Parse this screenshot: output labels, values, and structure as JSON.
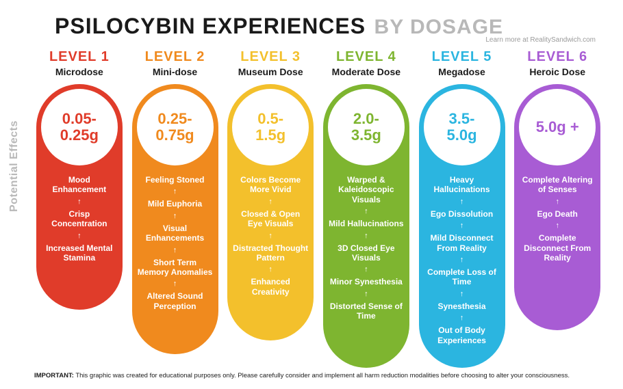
{
  "header": {
    "title_main": "PSILOCYBIN EXPERIENCES",
    "title_sub": "BY DOSAGE",
    "learn_more": "Learn more at RealitySandwich.com"
  },
  "side_label": "Potential Effects",
  "levels": [
    {
      "label": "LEVEL 1",
      "dose_name": "Microdose",
      "amount": "0.05-0.25g",
      "color": "#e03c2a",
      "pill_height": 330,
      "effects": [
        "Mood Enhancement",
        "Crisp Concentration",
        "Increased Mental Stamina"
      ]
    },
    {
      "label": "LEVEL 2",
      "dose_name": "Mini-dose",
      "amount": "0.25-0.75g",
      "color": "#f08a1e",
      "pill_height": 395,
      "effects": [
        "Feeling Stoned",
        "Mild Euphoria",
        "Visual Enhancements",
        "Short Term Memory Anomalies",
        "Altered Sound Perception"
      ]
    },
    {
      "label": "LEVEL 3",
      "dose_name": "Museum Dose",
      "amount": "0.5-1.5g",
      "color": "#f3c02c",
      "pill_height": 375,
      "effects": [
        "Colors Become More Vivid",
        "Closed & Open Eye Visuals",
        "Distracted Thought Pattern",
        "Enhanced Creativity"
      ]
    },
    {
      "label": "LEVEL 4",
      "dose_name": "Moderate Dose",
      "amount": "2.0-3.5g",
      "color": "#7eb530",
      "pill_height": 415,
      "effects": [
        "Warped & Kaleidoscopic Visuals",
        "Mild Hallucinations",
        "3D Closed Eye Visuals",
        "Minor Synesthesia",
        "Distorted Sense of Time"
      ]
    },
    {
      "label": "LEVEL 5",
      "dose_name": "Megadose",
      "amount": "3.5-5.0g",
      "color": "#2bb5e0",
      "pill_height": 415,
      "effects": [
        "Heavy Hallucinations",
        "Ego Dissolution",
        "Mild Disconnect From Reality",
        "Complete Loss of Time",
        "Synesthesia",
        "Out of Body Experiences"
      ]
    },
    {
      "label": "LEVEL 6",
      "dose_name": "Heroic Dose",
      "amount": "5.0g +",
      "color": "#a85cd4",
      "pill_height": 360,
      "effects": [
        "Complete Altering of Senses",
        "Ego Death",
        "Complete Disconnect From Reality"
      ]
    }
  ],
  "footer": {
    "label": "IMPORTANT:",
    "text": " This graphic was created for educational purposes only. Please carefully consider and implement all harm reduction modalities before choosing to alter your consciousness."
  },
  "arrow_glyph": "↑"
}
